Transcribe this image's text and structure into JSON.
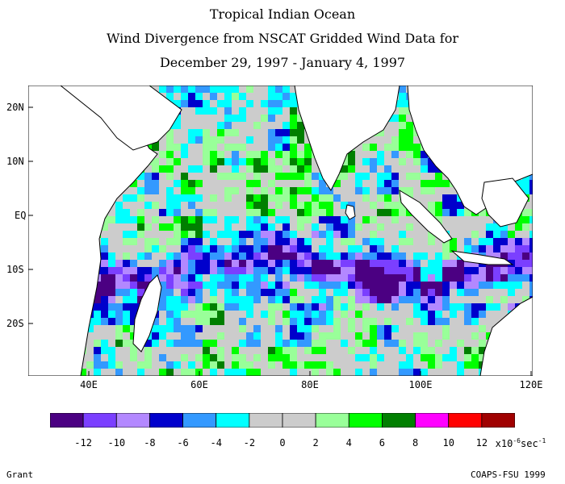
{
  "title": {
    "line1": "Tropical Indian Ocean",
    "line2": "Wind Divergence from NSCAT Gridded Wind Data for",
    "line3": "December 29, 1997 - January 4, 1997"
  },
  "axes": {
    "lat_labels": [
      "20N",
      "10N",
      "EQ",
      "10S",
      "20S"
    ],
    "lon_labels": [
      "40E",
      "60E",
      "80E",
      "100E",
      "120E"
    ]
  },
  "colorbar": {
    "colors": [
      "#4b0082",
      "#7b3fff",
      "#b388ff",
      "#0000cc",
      "#3399ff",
      "#00ffff",
      "#cccccc",
      "#cccccc",
      "#99ff99",
      "#00ff00",
      "#007f00",
      "#ff00ff",
      "#ff0000",
      "#a00000"
    ],
    "tick_labels": [
      "-12",
      "-10",
      "-8",
      "-6",
      "-4",
      "-2",
      "0",
      "2",
      "4",
      "6",
      "8",
      "10",
      "12"
    ],
    "unit_text": "x10",
    "unit_exp": "-6",
    "unit_tail": "sec",
    "unit_tail_exp": "-1"
  },
  "footer": {
    "left": "Grant",
    "right": "COAPS-FSU 1999"
  },
  "chart_data": {
    "type": "heatmap",
    "variable": "wind divergence",
    "lon_range": [
      30,
      122
    ],
    "lat_range": [
      -30,
      25
    ],
    "levels": [
      -14,
      -12,
      -10,
      -8,
      -6,
      -4,
      -2,
      0,
      2,
      4,
      6,
      8,
      10,
      12,
      14
    ],
    "dominant_features": {
      "convergence_band": "strong convergence (-12 to -6) along roughly 7S-15S from 55E to 115E",
      "northern_basin": "mostly near-zero (-2 to 2) with scattered divergence (4 to 8) patches",
      "southern_basin": "mixed near-zero and divergence (2 to 8) south of 20S"
    }
  }
}
